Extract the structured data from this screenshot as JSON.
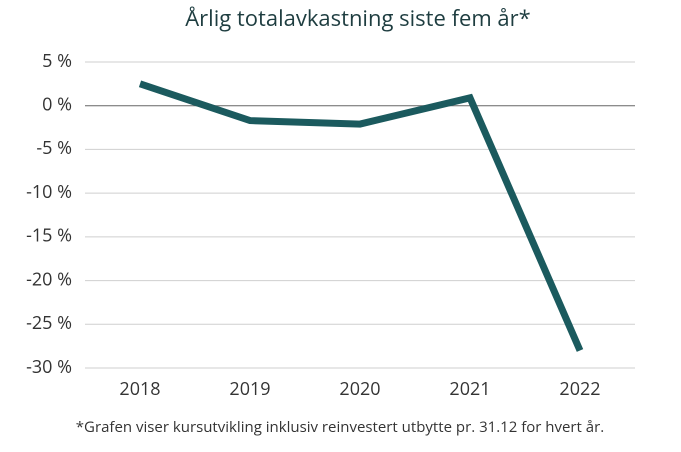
{
  "chart_data": {
    "type": "line",
    "title": "Årlig totalavkastning siste fem år*",
    "note": "*Grafen viser kursutvikling inklusiv reinvestert utbytte pr. 31.12 for hvert år.",
    "categories": [
      "2018",
      "2019",
      "2020",
      "2021",
      "2022"
    ],
    "series": [
      {
        "name": "Totalavkastning",
        "color": "#1b5a5e",
        "values": [
          2.5,
          -1.7,
          -2.1,
          0.9,
          -28.0
        ]
      }
    ],
    "ylim": [
      -30,
      5
    ],
    "yticks": [
      {
        "value": 5,
        "label": "5 %"
      },
      {
        "value": 0,
        "label": "0 %"
      },
      {
        "value": -5,
        "label": "-5 %"
      },
      {
        "value": -10,
        "label": "-10 %"
      },
      {
        "value": -15,
        "label": "-15 %"
      },
      {
        "value": -20,
        "label": "-20 %"
      },
      {
        "value": -25,
        "label": "-25 %"
      },
      {
        "value": -30,
        "label": "-30 %"
      }
    ],
    "grid": true
  }
}
